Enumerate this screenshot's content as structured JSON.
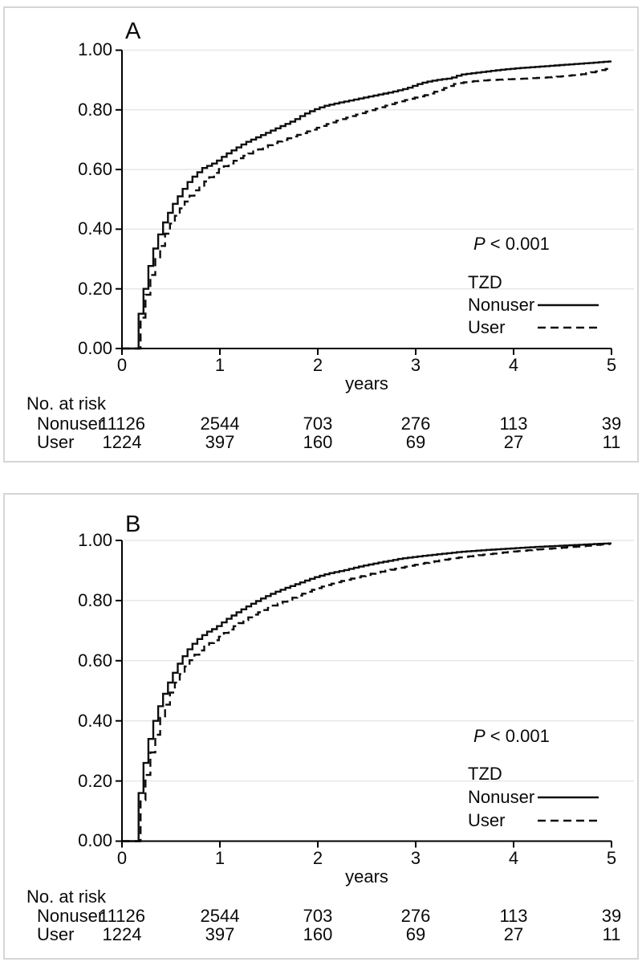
{
  "panels": {
    "A": {
      "letter": "A",
      "p_italic": "P",
      "p_rest": " < 0.001",
      "legend_title": "TZD",
      "series_labels": [
        "Nonuser",
        "User"
      ],
      "y_tick_labels": [
        "1.00",
        "0.80",
        "0.60",
        "0.40",
        "0.20",
        "0.00"
      ],
      "x_tick_labels": [
        "0",
        "1",
        "2",
        "3",
        "4",
        "5"
      ],
      "x_axis_label": "years",
      "risk": {
        "title": "No. at risk",
        "row1_label": "Nonuser",
        "row1": [
          "11126",
          "2544",
          "703",
          "276",
          "113",
          "39"
        ],
        "row2_label": "User",
        "row2": [
          "1224",
          "397",
          "160",
          "69",
          "27",
          "11"
        ]
      }
    },
    "B": {
      "letter": "B",
      "p_italic": "P",
      "p_rest": " < 0.001",
      "legend_title": "TZD",
      "series_labels": [
        "Nonuser",
        "User"
      ],
      "y_tick_labels": [
        "1.00",
        "0.80",
        "0.60",
        "0.40",
        "0.20",
        "0.00"
      ],
      "x_tick_labels": [
        "0",
        "1",
        "2",
        "3",
        "4",
        "5"
      ],
      "x_axis_label": "years",
      "risk": {
        "title": "No. at risk",
        "row1_label": "Nonuser",
        "row1": [
          "11126",
          "2544",
          "703",
          "276",
          "113",
          "39"
        ],
        "row2_label": "User",
        "row2": [
          "1224",
          "397",
          "160",
          "69",
          "27",
          "11"
        ]
      }
    }
  },
  "chart_data": [
    {
      "type": "line",
      "subtype": "kaplan-meier-step",
      "panel": "A",
      "xlabel": "years",
      "ylabel": "",
      "xlim": [
        0,
        5
      ],
      "ylim": [
        0,
        1
      ],
      "x_ticks": [
        0,
        1,
        2,
        3,
        4,
        5
      ],
      "y_ticks": [
        0,
        0.2,
        0.4,
        0.6,
        0.8,
        1.0
      ],
      "grid": "horizontal",
      "annotation": "P < 0.001",
      "legend_title": "TZD",
      "legend_position": "inside-right",
      "series": [
        {
          "name": "Nonuser",
          "style": "solid",
          "points": [
            [
              0.17,
              0
            ],
            [
              0.18,
              0.06
            ],
            [
              0.21,
              0.1
            ],
            [
              0.24,
              0.15
            ],
            [
              0.27,
              0.2
            ],
            [
              0.3,
              0.25
            ],
            [
              0.33,
              0.29
            ],
            [
              0.36,
              0.325
            ],
            [
              0.4,
              0.365
            ],
            [
              0.44,
              0.4
            ],
            [
              0.48,
              0.43
            ],
            [
              0.52,
              0.455
            ],
            [
              0.56,
              0.48
            ],
            [
              0.6,
              0.5
            ],
            [
              0.65,
              0.525
            ],
            [
              0.7,
              0.55
            ],
            [
              0.75,
              0.57
            ],
            [
              0.8,
              0.585
            ],
            [
              0.87,
              0.605
            ],
            [
              0.94,
              0.615
            ],
            [
              1.0,
              0.625
            ],
            [
              1.1,
              0.65
            ],
            [
              1.2,
              0.67
            ],
            [
              1.3,
              0.69
            ],
            [
              1.4,
              0.705
            ],
            [
              1.5,
              0.72
            ],
            [
              1.6,
              0.735
            ],
            [
              1.7,
              0.75
            ],
            [
              1.8,
              0.765
            ],
            [
              1.9,
              0.785
            ],
            [
              2.0,
              0.8
            ],
            [
              2.1,
              0.812
            ],
            [
              2.2,
              0.82
            ],
            [
              2.35,
              0.83
            ],
            [
              2.5,
              0.84
            ],
            [
              2.65,
              0.85
            ],
            [
              2.8,
              0.86
            ],
            [
              2.95,
              0.872
            ],
            [
              3.1,
              0.89
            ],
            [
              3.25,
              0.9
            ],
            [
              3.4,
              0.906
            ],
            [
              3.5,
              0.918
            ],
            [
              3.7,
              0.926
            ],
            [
              3.9,
              0.934
            ],
            [
              4.1,
              0.94
            ],
            [
              4.35,
              0.946
            ],
            [
              4.6,
              0.952
            ],
            [
              4.85,
              0.958
            ],
            [
              5.0,
              0.962
            ]
          ]
        },
        {
          "name": "User",
          "style": "dashed",
          "points": [
            [
              0.19,
              0
            ],
            [
              0.2,
              0.05
            ],
            [
              0.23,
              0.09
            ],
            [
              0.26,
              0.13
            ],
            [
              0.29,
              0.18
            ],
            [
              0.32,
              0.22
            ],
            [
              0.35,
              0.26
            ],
            [
              0.39,
              0.3
            ],
            [
              0.43,
              0.335
            ],
            [
              0.47,
              0.37
            ],
            [
              0.51,
              0.4
            ],
            [
              0.55,
              0.425
            ],
            [
              0.6,
              0.45
            ],
            [
              0.65,
              0.475
            ],
            [
              0.7,
              0.497
            ],
            [
              0.76,
              0.52
            ],
            [
              0.82,
              0.54
            ],
            [
              0.89,
              0.56
            ],
            [
              0.96,
              0.58
            ],
            [
              1.03,
              0.6
            ],
            [
              1.12,
              0.617
            ],
            [
              1.21,
              0.633
            ],
            [
              1.3,
              0.648
            ],
            [
              1.4,
              0.662
            ],
            [
              1.5,
              0.676
            ],
            [
              1.6,
              0.69
            ],
            [
              1.7,
              0.7
            ],
            [
              1.8,
              0.712
            ],
            [
              1.9,
              0.723
            ],
            [
              2.0,
              0.735
            ],
            [
              2.12,
              0.75
            ],
            [
              2.25,
              0.765
            ],
            [
              2.4,
              0.78
            ],
            [
              2.55,
              0.795
            ],
            [
              2.7,
              0.81
            ],
            [
              2.85,
              0.825
            ],
            [
              3.0,
              0.838
            ],
            [
              3.15,
              0.85
            ],
            [
              3.3,
              0.868
            ],
            [
              3.45,
              0.888
            ],
            [
              3.6,
              0.895
            ],
            [
              3.8,
              0.9
            ],
            [
              4.1,
              0.904
            ],
            [
              4.35,
              0.908
            ],
            [
              4.55,
              0.913
            ],
            [
              4.75,
              0.92
            ],
            [
              4.9,
              0.93
            ],
            [
              5.0,
              0.938
            ]
          ]
        }
      ],
      "risk_table": {
        "title": "No. at risk",
        "times": [
          0,
          1,
          2,
          3,
          4,
          5
        ],
        "rows": [
          {
            "name": "Nonuser",
            "values": [
              11126,
              2544,
              703,
              276,
              113,
              39
            ]
          },
          {
            "name": "User",
            "values": [
              1224,
              397,
              160,
              69,
              27,
              11
            ]
          }
        ]
      }
    },
    {
      "type": "line",
      "subtype": "kaplan-meier-step",
      "panel": "B",
      "xlabel": "years",
      "ylabel": "",
      "xlim": [
        0,
        5
      ],
      "ylim": [
        0,
        1
      ],
      "x_ticks": [
        0,
        1,
        2,
        3,
        4,
        5
      ],
      "y_ticks": [
        0,
        0.2,
        0.4,
        0.6,
        0.8,
        1.0
      ],
      "grid": "horizontal",
      "annotation": "P < 0.001",
      "legend_title": "TZD",
      "legend_position": "inside-right",
      "series": [
        {
          "name": "Nonuser",
          "style": "solid",
          "points": [
            [
              0.17,
              0
            ],
            [
              0.18,
              0.08
            ],
            [
              0.21,
              0.14
            ],
            [
              0.24,
              0.2
            ],
            [
              0.27,
              0.26
            ],
            [
              0.3,
              0.31
            ],
            [
              0.33,
              0.355
            ],
            [
              0.37,
              0.4
            ],
            [
              0.41,
              0.44
            ],
            [
              0.45,
              0.475
            ],
            [
              0.49,
              0.505
            ],
            [
              0.53,
              0.535
            ],
            [
              0.57,
              0.56
            ],
            [
              0.62,
              0.59
            ],
            [
              0.67,
              0.615
            ],
            [
              0.72,
              0.638
            ],
            [
              0.78,
              0.66
            ],
            [
              0.84,
              0.678
            ],
            [
              0.91,
              0.695
            ],
            [
              1.0,
              0.71
            ],
            [
              1.1,
              0.735
            ],
            [
              1.2,
              0.757
            ],
            [
              1.3,
              0.777
            ],
            [
              1.4,
              0.795
            ],
            [
              1.5,
              0.812
            ],
            [
              1.6,
              0.827
            ],
            [
              1.7,
              0.84
            ],
            [
              1.8,
              0.852
            ],
            [
              1.9,
              0.864
            ],
            [
              2.0,
              0.876
            ],
            [
              2.15,
              0.89
            ],
            [
              2.3,
              0.9
            ],
            [
              2.45,
              0.912
            ],
            [
              2.6,
              0.922
            ],
            [
              2.75,
              0.931
            ],
            [
              2.9,
              0.94
            ],
            [
              3.1,
              0.948
            ],
            [
              3.3,
              0.955
            ],
            [
              3.5,
              0.962
            ],
            [
              3.75,
              0.968
            ],
            [
              4.0,
              0.973
            ],
            [
              4.25,
              0.978
            ],
            [
              4.5,
              0.982
            ],
            [
              4.75,
              0.986
            ],
            [
              5.0,
              0.99
            ]
          ]
        },
        {
          "name": "User",
          "style": "dashed",
          "points": [
            [
              0.19,
              0
            ],
            [
              0.2,
              0.07
            ],
            [
              0.23,
              0.12
            ],
            [
              0.26,
              0.17
            ],
            [
              0.29,
              0.22
            ],
            [
              0.32,
              0.27
            ],
            [
              0.36,
              0.32
            ],
            [
              0.4,
              0.365
            ],
            [
              0.44,
              0.41
            ],
            [
              0.48,
              0.445
            ],
            [
              0.52,
              0.48
            ],
            [
              0.57,
              0.515
            ],
            [
              0.62,
              0.545
            ],
            [
              0.67,
              0.572
            ],
            [
              0.73,
              0.598
            ],
            [
              0.79,
              0.62
            ],
            [
              0.86,
              0.64
            ],
            [
              0.93,
              0.657
            ],
            [
              1.0,
              0.67
            ],
            [
              1.1,
              0.695
            ],
            [
              1.2,
              0.717
            ],
            [
              1.3,
              0.737
            ],
            [
              1.4,
              0.755
            ],
            [
              1.5,
              0.77
            ],
            [
              1.6,
              0.785
            ],
            [
              1.72,
              0.8
            ],
            [
              1.85,
              0.818
            ],
            [
              2.0,
              0.837
            ],
            [
              2.15,
              0.853
            ],
            [
              2.3,
              0.866
            ],
            [
              2.45,
              0.878
            ],
            [
              2.6,
              0.89
            ],
            [
              2.75,
              0.9
            ],
            [
              2.9,
              0.91
            ],
            [
              3.1,
              0.923
            ],
            [
              3.3,
              0.934
            ],
            [
              3.5,
              0.944
            ],
            [
              3.75,
              0.953
            ],
            [
              4.0,
              0.962
            ],
            [
              4.25,
              0.969
            ],
            [
              4.5,
              0.975
            ],
            [
              4.75,
              0.981
            ],
            [
              5.0,
              0.988
            ]
          ]
        }
      ],
      "risk_table": {
        "title": "No. at risk",
        "times": [
          0,
          1,
          2,
          3,
          4,
          5
        ],
        "rows": [
          {
            "name": "Nonuser",
            "values": [
              11126,
              2544,
              703,
              276,
              113,
              39
            ]
          },
          {
            "name": "User",
            "values": [
              1224,
              397,
              160,
              69,
              27,
              11
            ]
          }
        ]
      }
    }
  ],
  "colors": {
    "curve": "#0d0d0d",
    "grid": "#e7e7e7",
    "frame_border": "#d6d6d6",
    "background": "#ffffff"
  }
}
